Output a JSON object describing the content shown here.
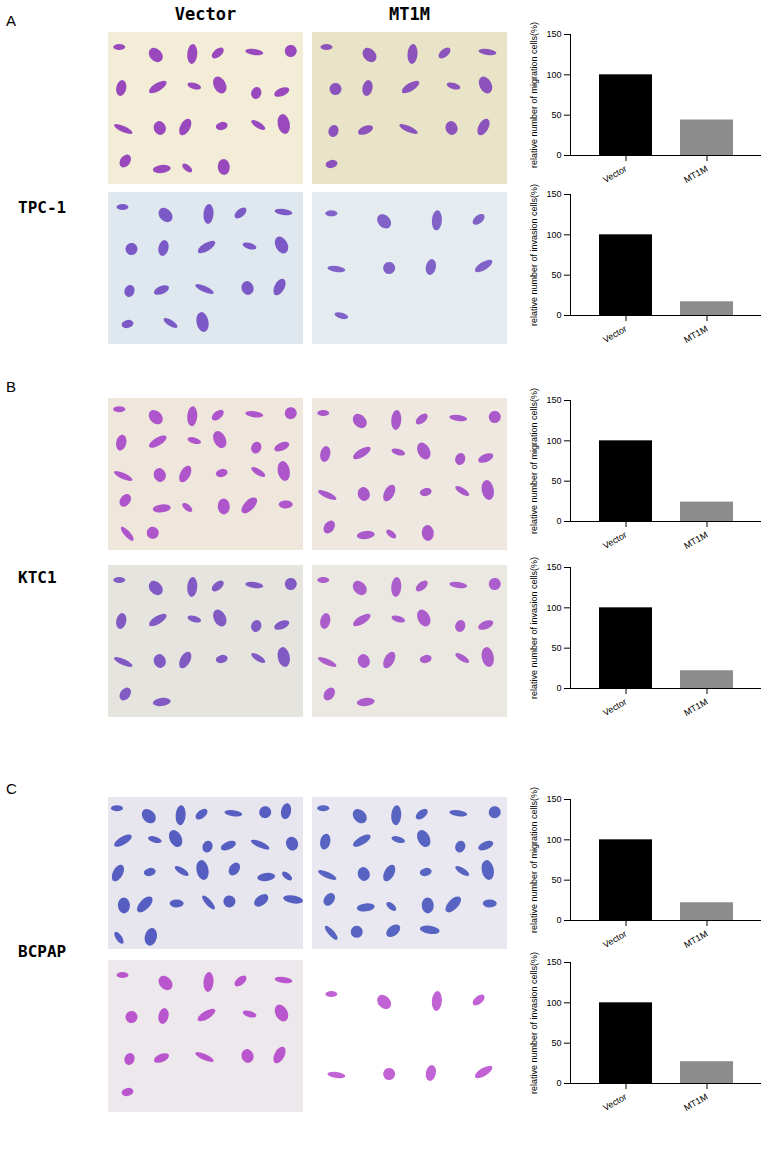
{
  "figure": {
    "columns": [
      "Vector",
      "MT1M"
    ],
    "panels": [
      {
        "letter": "A",
        "cell_line": "TPC-1"
      },
      {
        "letter": "B",
        "cell_line": "KTC1"
      },
      {
        "letter": "C",
        "cell_line": "BCPAP"
      }
    ]
  },
  "chart_data": [
    {
      "type": "bar",
      "categories": [
        "Vector",
        "MT1M"
      ],
      "values": [
        100,
        44
      ],
      "colors": [
        "#000000",
        "#8c8c8c"
      ],
      "ylim": [
        0,
        150
      ],
      "yticks": [
        0,
        50,
        100,
        150
      ],
      "y_label": "relative number of migration cells(%)"
    },
    {
      "type": "bar",
      "categories": [
        "Vector",
        "MT1M"
      ],
      "values": [
        100,
        17
      ],
      "colors": [
        "#000000",
        "#8c8c8c"
      ],
      "ylim": [
        0,
        150
      ],
      "yticks": [
        0,
        50,
        100,
        150
      ],
      "y_label": "relative number of invasion cells(%)"
    },
    {
      "type": "bar",
      "categories": [
        "Vector",
        "MT1M"
      ],
      "values": [
        100,
        24
      ],
      "colors": [
        "#000000",
        "#8c8c8c"
      ],
      "ylim": [
        0,
        150
      ],
      "yticks": [
        0,
        50,
        100,
        150
      ],
      "y_label": "relative number of migration cells(%)"
    },
    {
      "type": "bar",
      "categories": [
        "Vector",
        "MT1M"
      ],
      "values": [
        100,
        22
      ],
      "colors": [
        "#000000",
        "#8c8c8c"
      ],
      "ylim": [
        0,
        150
      ],
      "yticks": [
        0,
        50,
        100,
        150
      ],
      "y_label": "relative number of invasion cells(%)"
    },
    {
      "type": "bar",
      "categories": [
        "Vector",
        "MT1M"
      ],
      "values": [
        100,
        22
      ],
      "colors": [
        "#000000",
        "#8c8c8c"
      ],
      "ylim": [
        0,
        150
      ],
      "yticks": [
        0,
        50,
        100,
        150
      ],
      "y_label": "relative number of migration cells(%)"
    },
    {
      "type": "bar",
      "categories": [
        "Vector",
        "MT1M"
      ],
      "values": [
        100,
        27
      ],
      "colors": [
        "#000000",
        "#8c8c8c"
      ],
      "ylim": [
        0,
        150
      ],
      "yticks": [
        0,
        50,
        100,
        150
      ],
      "y_label": "relative number of invasion cells(%)"
    }
  ]
}
